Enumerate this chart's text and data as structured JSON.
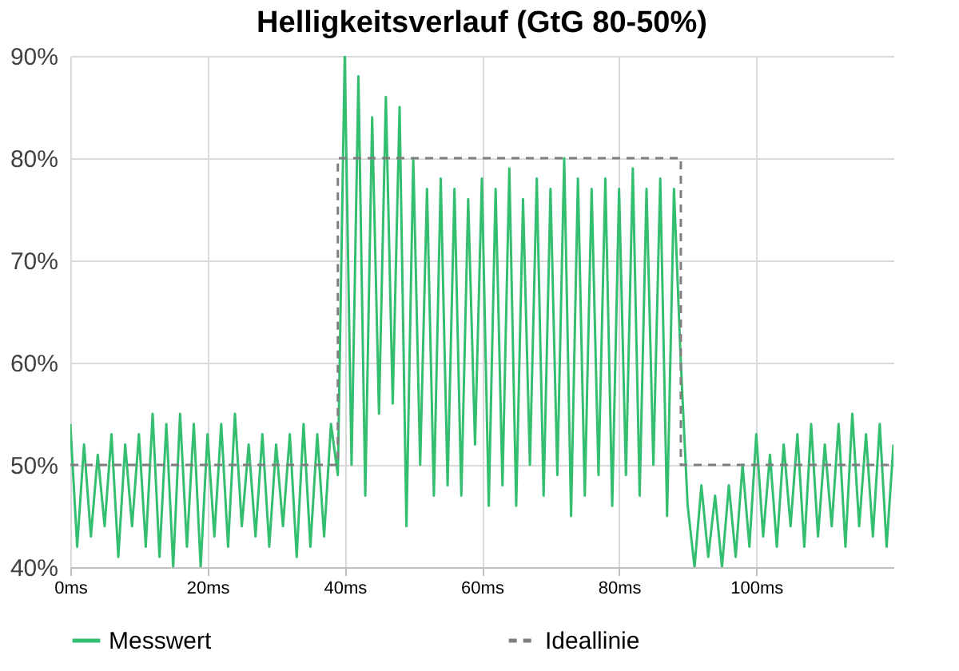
{
  "chart_data": {
    "type": "line",
    "title": "Helligkeitsverlauf (GtG 80-50%)",
    "xlim": [
      0,
      120
    ],
    "ylim": [
      40,
      90
    ],
    "xticks": [
      {
        "value": 0,
        "label": "0ms"
      },
      {
        "value": 20,
        "label": "20ms"
      },
      {
        "value": 40,
        "label": "40ms"
      },
      {
        "value": 60,
        "label": "60ms"
      },
      {
        "value": 80,
        "label": "80ms"
      },
      {
        "value": 100,
        "label": "100ms"
      }
    ],
    "yticks": [
      {
        "value": 40,
        "label": "40%"
      },
      {
        "value": 50,
        "label": "50%"
      },
      {
        "value": 60,
        "label": "60%"
      },
      {
        "value": 70,
        "label": "70%"
      },
      {
        "value": 80,
        "label": "80%"
      },
      {
        "value": 90,
        "label": "90%"
      }
    ],
    "grid": true,
    "legend": "bottom",
    "series": [
      {
        "name": "Messwert",
        "color": "#33bf6f",
        "line_style": "solid",
        "x": [
          0,
          1,
          2,
          3,
          4,
          5,
          6,
          7,
          8,
          9,
          10,
          11,
          12,
          13,
          14,
          15,
          16,
          17,
          18,
          19,
          20,
          21,
          22,
          23,
          24,
          25,
          26,
          27,
          28,
          29,
          30,
          31,
          32,
          33,
          34,
          35,
          36,
          37,
          38,
          39,
          40,
          41,
          42,
          43,
          44,
          45,
          46,
          47,
          48,
          49,
          50,
          51,
          52,
          53,
          54,
          55,
          56,
          57,
          58,
          59,
          60,
          61,
          62,
          63,
          64,
          65,
          66,
          67,
          68,
          69,
          70,
          71,
          72,
          73,
          74,
          75,
          76,
          77,
          78,
          79,
          80,
          81,
          82,
          83,
          84,
          85,
          86,
          87,
          88,
          89,
          90,
          91,
          92,
          93,
          94,
          95,
          96,
          97,
          98,
          99,
          100,
          101,
          102,
          103,
          104,
          105,
          106,
          107,
          108,
          109,
          110,
          111,
          112,
          113,
          114,
          115,
          116,
          117,
          118,
          119,
          120
        ],
        "values": [
          54,
          42,
          52,
          43,
          51,
          44,
          53,
          41,
          52,
          44,
          53,
          42,
          55,
          41,
          54,
          40,
          55,
          42,
          54,
          40,
          53,
          43,
          54,
          42,
          55,
          44,
          52,
          43,
          53,
          42,
          52,
          44,
          53,
          41,
          54,
          42,
          53,
          43,
          54,
          49,
          90,
          50,
          88,
          47,
          84,
          55,
          86,
          56,
          85,
          44,
          80,
          50,
          77,
          47,
          78,
          48,
          77,
          47,
          76,
          52,
          78,
          46,
          77,
          48,
          79,
          46,
          76,
          50,
          78,
          47,
          77,
          49,
          80,
          45,
          78,
          47,
          77,
          49,
          78,
          46,
          77,
          49,
          79,
          47,
          77,
          50,
          78,
          45,
          77,
          60,
          46,
          40,
          48,
          41,
          47,
          40,
          48,
          41,
          50,
          42,
          53,
          43,
          51,
          42,
          52,
          44,
          53,
          42,
          54,
          43,
          52,
          44,
          54,
          42,
          55,
          44,
          53,
          43,
          54,
          42,
          52
        ]
      },
      {
        "name": "Ideallinie",
        "color": "#7f7f7f",
        "line_style": "dashed",
        "x": [
          0,
          39,
          39,
          89,
          89,
          120
        ],
        "values": [
          50,
          50,
          80,
          80,
          50,
          50
        ]
      }
    ]
  }
}
